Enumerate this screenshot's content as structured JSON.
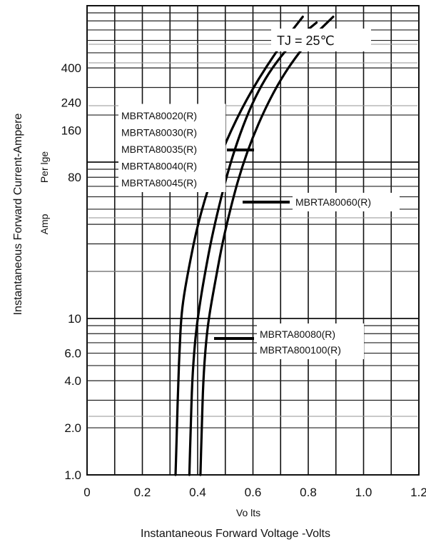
{
  "chart_data": {
    "type": "line",
    "y_scale": "log",
    "xlim": [
      0,
      1.2
    ],
    "ylim": [
      1.0,
      1000
    ],
    "x_ticks": [
      "0",
      "0.2",
      "0.4",
      "0.6",
      "0.8",
      "1.0",
      "1.2"
    ],
    "y_ticks": [
      {
        "value": 1.0,
        "label": "1.0"
      },
      {
        "value": 2.0,
        "label": "2.0"
      },
      {
        "value": 4.0,
        "label": "4.0"
      },
      {
        "value": 6.0,
        "label": "6.0"
      },
      {
        "value": 10,
        "label": "10"
      },
      {
        "value": 80,
        "label": "80"
      },
      {
        "value": 160,
        "label": "160"
      },
      {
        "value": 240,
        "label": "240"
      },
      {
        "value": 400,
        "label": "400"
      }
    ],
    "xlabel": "Instantaneous  Forward Voltage -Volts",
    "xunit": "Vo lts",
    "ylabel": "Instantaneous  Forward Current-Ampere",
    "yunit_1": "Per lge",
    "yunit_2": "Amp",
    "annotation": "TJ = 25℃",
    "grid": true,
    "series": [
      {
        "name": "MBRTA80020(R) MBRTA80030(R) MBRTA80035(R) MBRTA80040(R) MBRTA80045(R)",
        "labels": [
          "MBRTA80020(R)",
          "MBRTA80030(R)",
          "MBRTA80035(R)",
          "MBRTA80040(R)",
          "MBRTA80045(R)"
        ],
        "x": [
          0.32,
          0.325,
          0.33,
          0.335,
          0.34,
          0.35,
          0.37,
          0.4,
          0.45,
          0.52,
          0.6,
          0.7,
          0.78
        ],
        "y": [
          1.0,
          2.0,
          4.0,
          6.5,
          10,
          14,
          22,
          40,
          80,
          160,
          300,
          560,
          850
        ]
      },
      {
        "name": "MBRTA80060(R)",
        "labels": [
          "MBRTA80060(R)"
        ],
        "x": [
          0.37,
          0.375,
          0.38,
          0.39,
          0.4,
          0.42,
          0.46,
          0.53,
          0.62,
          0.73,
          0.83
        ],
        "y": [
          1.0,
          2.0,
          4.0,
          7.0,
          10,
          17,
          40,
          120,
          300,
          560,
          780
        ]
      },
      {
        "name": "MBRTA80080(R) MBRTA800100(R)",
        "labels": [
          "MBRTA80080(R)",
          "MBRTA800100(R)"
        ],
        "x": [
          0.41,
          0.415,
          0.42,
          0.43,
          0.44,
          0.46,
          0.5,
          0.57,
          0.67,
          0.78,
          0.89
        ],
        "y": [
          1.0,
          2.0,
          4.0,
          7.0,
          10,
          16,
          38,
          110,
          280,
          550,
          850
        ]
      }
    ]
  }
}
